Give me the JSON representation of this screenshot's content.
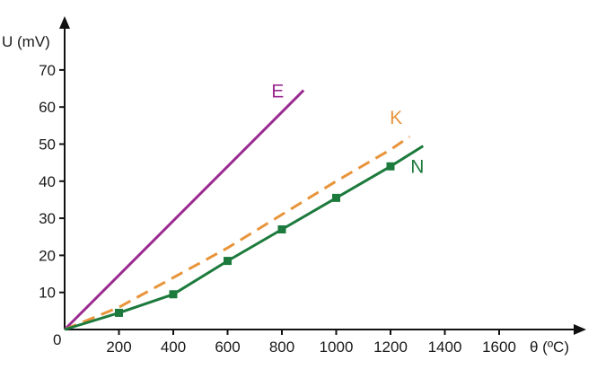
{
  "chart_data": {
    "type": "line",
    "xlabel": "θ (ºC)",
    "ylabel": "U (mV)",
    "xlim": [
      0,
      1900
    ],
    "ylim": [
      0,
      77
    ],
    "origin_label": "0",
    "x_ticks": [
      200,
      400,
      600,
      800,
      1000,
      1200,
      1400,
      1600
    ],
    "y_ticks": [
      10,
      20,
      30,
      40,
      50,
      60,
      70
    ],
    "grid": false,
    "legend": "none",
    "series": [
      {
        "name": "E",
        "color": "#9b2a8f",
        "style": "solid",
        "markers": false,
        "x": [
          0,
          880
        ],
        "y": [
          0,
          64.5
        ]
      },
      {
        "name": "K",
        "color": "#e8943a",
        "style": "dashed",
        "markers": false,
        "x": [
          0,
          200,
          400,
          600,
          800,
          1000,
          1200,
          1270
        ],
        "y": [
          0,
          6,
          14,
          22,
          31,
          40,
          48.5,
          52
        ]
      },
      {
        "name": "N",
        "color": "#1c7a3c",
        "style": "solid",
        "markers": true,
        "marker_x": [
          200,
          400,
          600,
          800,
          1000,
          1200
        ],
        "x": [
          0,
          200,
          400,
          600,
          800,
          1000,
          1200,
          1320
        ],
        "y": [
          0,
          4.5,
          9.5,
          18.5,
          27,
          35.5,
          44,
          49.5
        ]
      }
    ]
  }
}
